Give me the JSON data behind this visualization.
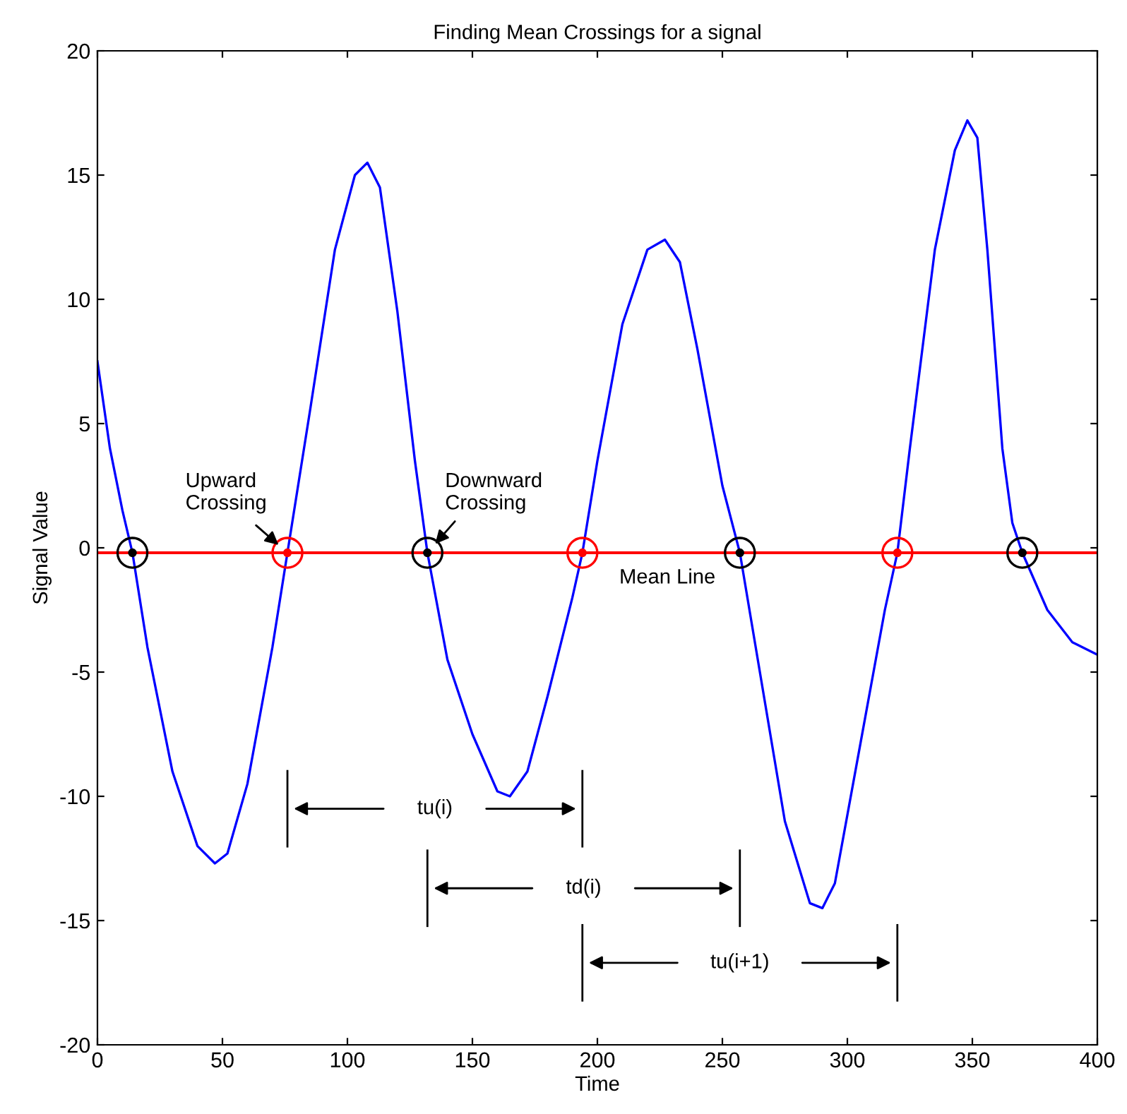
{
  "chart_data": {
    "type": "line",
    "title": "Finding Mean Crossings for a signal",
    "xlabel": "Time",
    "ylabel": "Signal Value",
    "xlim": [
      0,
      400
    ],
    "ylim": [
      -20,
      20
    ],
    "xticks": [
      0,
      50,
      100,
      150,
      200,
      250,
      300,
      350,
      400
    ],
    "yticks": [
      -20,
      -15,
      -10,
      -5,
      0,
      5,
      10,
      15,
      20
    ],
    "grid": false,
    "legend": false,
    "series": [
      {
        "color": "#0000ff",
        "marker": "none",
        "x": [
          0,
          5,
          10,
          14,
          20,
          30,
          40,
          47,
          52,
          60,
          70,
          76,
          85,
          95,
          103,
          108,
          113,
          120,
          127,
          132,
          140,
          150,
          160,
          165,
          172,
          180,
          190,
          194,
          200,
          210,
          220,
          227,
          233,
          240,
          250,
          257,
          265,
          275,
          285,
          290,
          295,
          305,
          315,
          320,
          325,
          335,
          343,
          348,
          352,
          356,
          362,
          366,
          370,
          380,
          390,
          400
        ],
        "values": [
          7.5,
          4,
          1.5,
          -0.2,
          -4,
          -9,
          -12,
          -12.7,
          -12.3,
          -9.5,
          -4,
          -0.2,
          5.5,
          12,
          15,
          15.5,
          14.5,
          9.5,
          3.5,
          -0.2,
          -4.5,
          -7.5,
          -9.8,
          -10,
          -9,
          -6,
          -2,
          -0.2,
          3.5,
          9,
          12,
          12.4,
          11.5,
          8,
          2.5,
          -0.2,
          -5,
          -11,
          -14.3,
          -14.5,
          -13.5,
          -8,
          -2.5,
          -0.2,
          4,
          12,
          16,
          17.2,
          16.5,
          12,
          4,
          1,
          -0.2,
          -2.5,
          -3.8,
          -4.3
        ]
      },
      {
        "type": "scatter",
        "color": "#000000",
        "marker": "circle",
        "x": [
          14,
          132,
          257,
          370
        ],
        "values": [
          -0.2,
          -0.2,
          -0.2,
          -0.2
        ]
      },
      {
        "type": "scatter",
        "color": "#ff0000",
        "marker": "circle",
        "x": [
          76,
          194,
          320
        ],
        "values": [
          -0.2,
          -0.2,
          -0.2
        ]
      }
    ],
    "ref_lines": [
      {
        "axis": "y",
        "value": -0.2,
        "label": "Mean Line",
        "color": "#ff0000",
        "line_style": "solid"
      }
    ],
    "annotations": [
      "Upward\nCrossing",
      "Downward\nCrossing",
      "tu(i)",
      "td(i)",
      "tu(i+1)"
    ]
  }
}
